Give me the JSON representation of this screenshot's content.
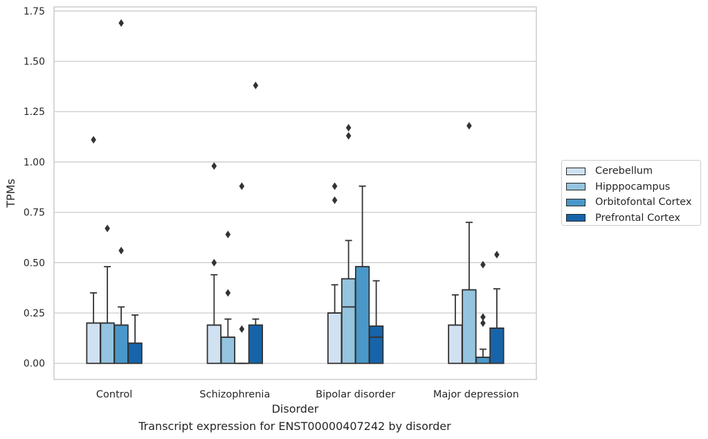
{
  "chart_data": {
    "type": "boxplot",
    "title": "",
    "caption": "Transcript expression for ENST00000407242 by disorder",
    "xlabel": "Disorder",
    "ylabel": "TPMs",
    "ylim": [
      -0.08,
      1.77
    ],
    "yticks": [
      0.0,
      0.25,
      0.5,
      0.75,
      1.0,
      1.25,
      1.5,
      1.75
    ],
    "ytick_labels": [
      "0.00",
      "0.25",
      "0.50",
      "0.75",
      "1.00",
      "1.25",
      "1.50",
      "1.75"
    ],
    "grid": "horizontal",
    "legend_position": "right",
    "categories": [
      "Control",
      "Schizophrenia",
      "Bipolar disorder",
      "Major depression"
    ],
    "series": [
      {
        "name": "Cerebellum",
        "color": "#d0e1f2",
        "boxes": [
          {
            "q1": 0.0,
            "median": 0.2,
            "q3": 0.2,
            "whisker_low": 0.0,
            "whisker_high": 0.35,
            "outliers": [
              1.11
            ]
          },
          {
            "q1": 0.0,
            "median": 0.19,
            "q3": 0.19,
            "whisker_low": 0.0,
            "whisker_high": 0.44,
            "outliers": [
              0.5,
              0.98
            ]
          },
          {
            "q1": 0.0,
            "median": 0.25,
            "q3": 0.25,
            "whisker_low": 0.0,
            "whisker_high": 0.39,
            "outliers": [
              0.81,
              0.88
            ]
          },
          {
            "q1": 0.0,
            "median": 0.19,
            "q3": 0.19,
            "whisker_low": 0.0,
            "whisker_high": 0.34,
            "outliers": []
          }
        ]
      },
      {
        "name": "Hipppocampus",
        "color": "#94c4df",
        "boxes": [
          {
            "q1": 0.0,
            "median": 0.2,
            "q3": 0.2,
            "whisker_low": 0.0,
            "whisker_high": 0.48,
            "outliers": [
              0.67
            ]
          },
          {
            "q1": 0.0,
            "median": 0.13,
            "q3": 0.13,
            "whisker_low": 0.0,
            "whisker_high": 0.22,
            "outliers": [
              0.35,
              0.64
            ]
          },
          {
            "q1": 0.0,
            "median": 0.28,
            "q3": 0.42,
            "whisker_low": 0.0,
            "whisker_high": 0.61,
            "outliers": [
              1.13,
              1.17
            ]
          },
          {
            "q1": 0.0,
            "median": 0.365,
            "q3": 0.365,
            "whisker_low": 0.0,
            "whisker_high": 0.7,
            "outliers": [
              1.18
            ]
          }
        ]
      },
      {
        "name": "Orbitofontal Cortex",
        "color": "#4a98c9",
        "boxes": [
          {
            "q1": 0.0,
            "median": 0.19,
            "q3": 0.19,
            "whisker_low": 0.0,
            "whisker_high": 0.28,
            "outliers": [
              0.56,
              1.69
            ]
          },
          {
            "q1": 0.0,
            "median": 0.0,
            "q3": 0.0,
            "whisker_low": 0.0,
            "whisker_high": 0.0,
            "outliers": [
              0.17,
              0.88
            ]
          },
          {
            "q1": 0.0,
            "median": 0.48,
            "q3": 0.48,
            "whisker_low": 0.0,
            "whisker_high": 0.88,
            "outliers": []
          },
          {
            "q1": 0.0,
            "median": 0.03,
            "q3": 0.03,
            "whisker_low": 0.0,
            "whisker_high": 0.07,
            "outliers": [
              0.2,
              0.23,
              0.49
            ]
          }
        ]
      },
      {
        "name": "Prefrontal Cortex",
        "color": "#1764ab",
        "boxes": [
          {
            "q1": 0.0,
            "median": 0.1,
            "q3": 0.1,
            "whisker_low": 0.0,
            "whisker_high": 0.24,
            "outliers": []
          },
          {
            "q1": 0.0,
            "median": 0.19,
            "q3": 0.19,
            "whisker_low": 0.0,
            "whisker_high": 0.22,
            "outliers": [
              1.38
            ]
          },
          {
            "q1": 0.0,
            "median": 0.13,
            "q3": 0.185,
            "whisker_low": 0.0,
            "whisker_high": 0.41,
            "outliers": []
          },
          {
            "q1": 0.0,
            "median": 0.175,
            "q3": 0.175,
            "whisker_low": 0.0,
            "whisker_high": 0.37,
            "outliers": [
              0.54
            ]
          }
        ]
      }
    ]
  }
}
